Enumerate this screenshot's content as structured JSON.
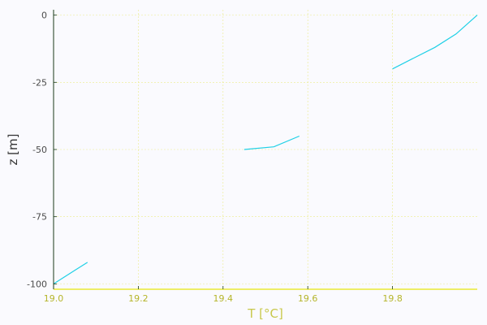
{
  "chart_data": {
    "type": "line",
    "xlabel": "T [°C]",
    "ylabel": "z [m]",
    "xlim": [
      19.0,
      20.0
    ],
    "ylim": [
      -102,
      2
    ],
    "x_ticks": [
      19.0,
      19.2,
      19.4,
      19.6,
      19.8
    ],
    "x_tick_labels": [
      "19.0",
      "19.2",
      "19.4",
      "19.6",
      "19.8"
    ],
    "y_ticks": [
      0,
      -25,
      -50,
      -75,
      -100
    ],
    "y_tick_labels": [
      "0",
      "-25",
      "-50",
      "-75",
      "-100"
    ],
    "grid": true,
    "legend": "none",
    "colors": {
      "background": "#fafafe",
      "line": "#1fd0e6",
      "grid": "#ecec8a",
      "axis_x": "#e8e80a",
      "axis_y": "#1a3b18",
      "x_labels": "#b5b52a",
      "y_labels": "#4b4b4b",
      "xlabel_color": "#c8c84a",
      "ylabel_color": "#333333"
    },
    "series": [
      {
        "x": [
          19.0,
          19.02,
          19.05,
          19.08
        ],
        "y": [
          -100,
          -98,
          -95,
          -92
        ]
      },
      {
        "x": [
          19.45,
          19.52,
          19.58
        ],
        "y": [
          -50,
          -49,
          -45
        ]
      },
      {
        "x": [
          19.8,
          19.85,
          19.9,
          19.95,
          20.0
        ],
        "y": [
          -20,
          -16,
          -12,
          -7,
          0
        ]
      }
    ]
  }
}
